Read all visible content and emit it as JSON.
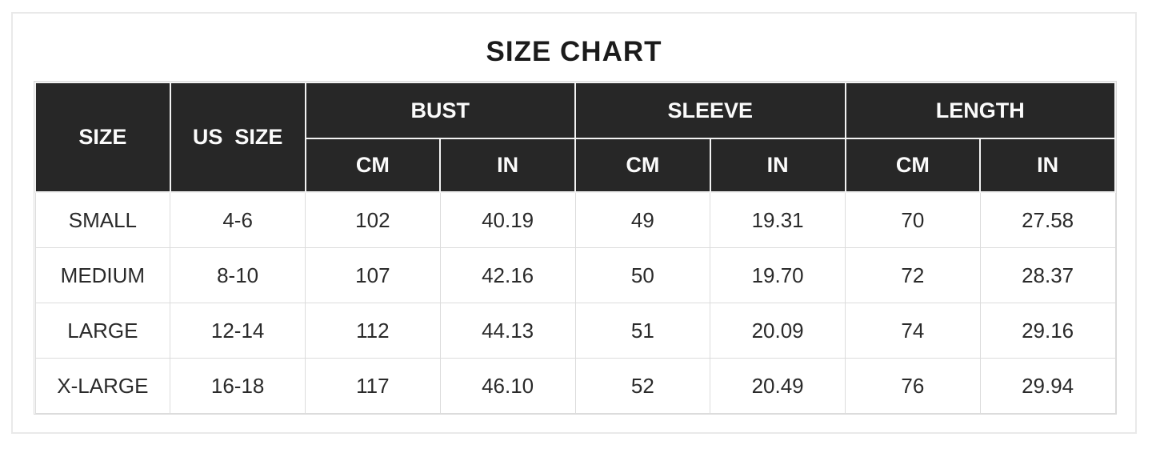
{
  "page": {
    "title": "SIZE CHART"
  },
  "colors": {
    "header_bg": "#272727",
    "header_text": "#fbfbfb",
    "body_text": "#2a2a2a",
    "grid_line": "#dcdcdc",
    "frame_border": "#e9e9e9"
  },
  "table": {
    "columns": {
      "size_label": "SIZE",
      "us_size_label": "US  SIZE",
      "groups": [
        {
          "label": "BUST",
          "sub": [
            "CM",
            "IN"
          ]
        },
        {
          "label": "SLEEVE",
          "sub": [
            "CM",
            "IN"
          ]
        },
        {
          "label": "LENGTH",
          "sub": [
            "CM",
            "IN"
          ]
        }
      ]
    },
    "rows": [
      {
        "size": "SMALL",
        "us_size": "4-6",
        "bust_cm": "102",
        "bust_in": "40.19",
        "sleeve_cm": "49",
        "sleeve_in": "19.31",
        "length_cm": "70",
        "length_in": "27.58"
      },
      {
        "size": "MEDIUM",
        "us_size": "8-10",
        "bust_cm": "107",
        "bust_in": "42.16",
        "sleeve_cm": "50",
        "sleeve_in": "19.70",
        "length_cm": "72",
        "length_in": "28.37"
      },
      {
        "size": "LARGE",
        "us_size": "12-14",
        "bust_cm": "112",
        "bust_in": "44.13",
        "sleeve_cm": "51",
        "sleeve_in": "20.09",
        "length_cm": "74",
        "length_in": "29.16"
      },
      {
        "size": "X-LARGE",
        "us_size": "16-18",
        "bust_cm": "117",
        "bust_in": "46.10",
        "sleeve_cm": "52",
        "sleeve_in": "20.49",
        "length_cm": "76",
        "length_in": "29.94"
      }
    ]
  }
}
